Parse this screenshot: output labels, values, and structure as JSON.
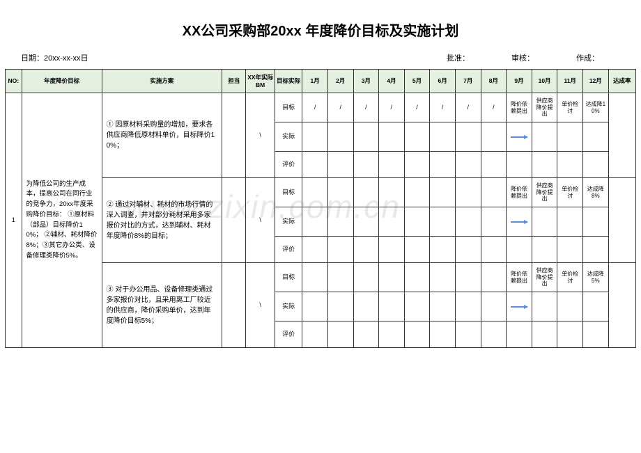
{
  "title": "XX公司采购部20xx 年度降价目标及实施计划",
  "meta": {
    "date_label": "日期：20xx-xx-xx日",
    "approve": "批准：",
    "review": "审核：",
    "author": "作成："
  },
  "headers": {
    "no": "NO:",
    "goal": "年度降价目标",
    "plan": "实施方案",
    "owner": "担当",
    "bm": "XX年实际BM",
    "ta": "目标实际",
    "m1": "1月",
    "m2": "2月",
    "m3": "3月",
    "m4": "4月",
    "m5": "5月",
    "m6": "6月",
    "m7": "7月",
    "m8": "8月",
    "m9": "9月",
    "m10": "10月",
    "m11": "11月",
    "m12": "12月",
    "rate": "达成率"
  },
  "row": {
    "no": "1",
    "goal": "为降低公司的生产成本，提高公司在同行业的竞争力，20xx年度采购降价目标：  ①原材料（部品）目标降价10%；    ②辅材、耗材降价8%；③其它办公类、设备修理类降价5%。",
    "labels": {
      "target": "目标",
      "actual": "实际",
      "eval": "评价"
    },
    "slash": "/",
    "bm_slash": "\\",
    "plans": [
      {
        "text": "① 因原材料采购量的增加，要求各供应商降低原材料单价，目标降价10%；",
        "m9": "降价依赖提出",
        "m10": "供应商降价提出",
        "m11": "单价检讨",
        "m12": "达成降10%"
      },
      {
        "text": "② 通过对辅材、耗材的市场行情的深入调查，并对部分耗材采用多家报价对比的方式，达到辅材、耗材年度降价8%的目标；",
        "m9": "降价依赖提出",
        "m10": "供应商降价提出",
        "m11": "单价检讨",
        "m12": "达成降8%"
      },
      {
        "text": "③ 对于办公用品、设备修理类通过多家报价对比，且采用离工厂较近的供应商，降价采购单价，达到年度降价目标5%；",
        "m9": "降价依赖提出",
        "m10": "供应商降价提出",
        "m11": "单价检讨",
        "m12": "达成降5%"
      }
    ]
  },
  "watermark": "www.zixin.com.cn",
  "colors": {
    "header_bg": "#e5f0e0",
    "border": "#333333",
    "arrow": "#5a8fd6",
    "watermark": "#e9e9e9"
  }
}
